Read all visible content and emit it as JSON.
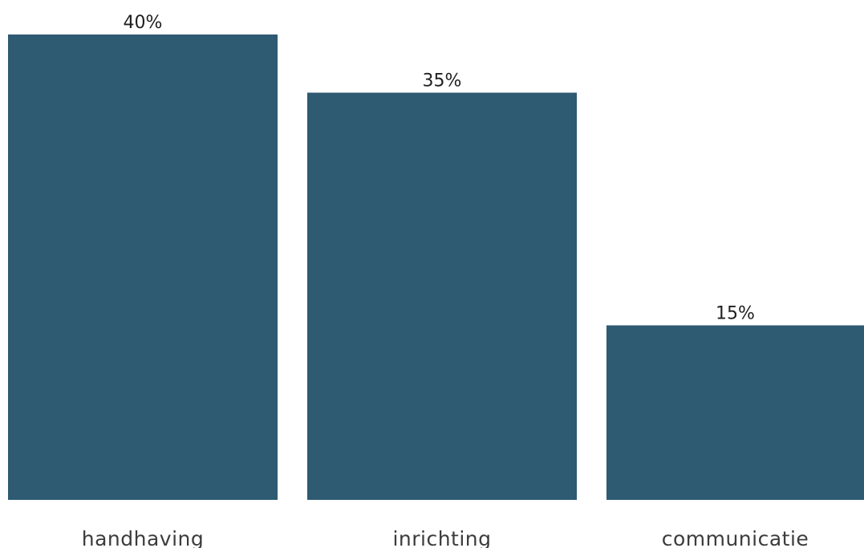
{
  "chart_data": {
    "type": "bar",
    "categories": [
      "handhaving",
      "inrichting",
      "communicatie"
    ],
    "values": [
      40,
      35,
      15
    ],
    "value_labels": [
      "40%",
      "35%",
      "15%"
    ],
    "title": "",
    "xlabel": "",
    "ylabel": "",
    "ylim": [
      0,
      40
    ],
    "grid": false,
    "bar_color": "#2e5a72"
  }
}
